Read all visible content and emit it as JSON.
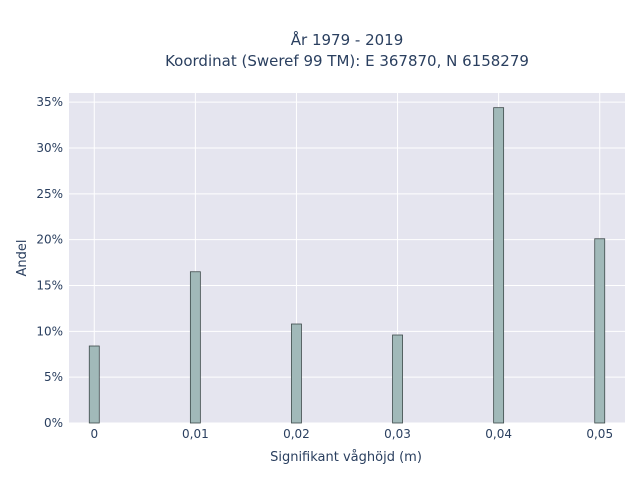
{
  "chart_data": {
    "type": "bar",
    "title_line1": "År 1979 - 2019",
    "title_line2": "Koordinat (Sweref 99 TM): E 367870, N 6158279",
    "xlabel": "Signifikant våghöjd (m)",
    "ylabel": "Andel",
    "x": [
      0,
      0.01,
      0.02,
      0.03,
      0.04,
      0.05
    ],
    "x_tick_labels": [
      "0",
      "0,01",
      "0,02",
      "0,03",
      "0,04",
      "0,05"
    ],
    "values": [
      8.4,
      16.5,
      10.8,
      9.6,
      34.4,
      20.1
    ],
    "y_unit": "%",
    "ylim": [
      0,
      36
    ],
    "y_ticks": [
      0,
      5,
      10,
      15,
      20,
      25,
      30,
      35
    ],
    "xlim": [
      -0.0025,
      0.0525
    ],
    "grid": true,
    "colors": {
      "bar_fill": "#a1b9b9",
      "bar_stroke": "#3d4a4a",
      "plot_background": "#e5e5ef",
      "grid": "#ffffff",
      "text": "#2a3f5f"
    }
  }
}
